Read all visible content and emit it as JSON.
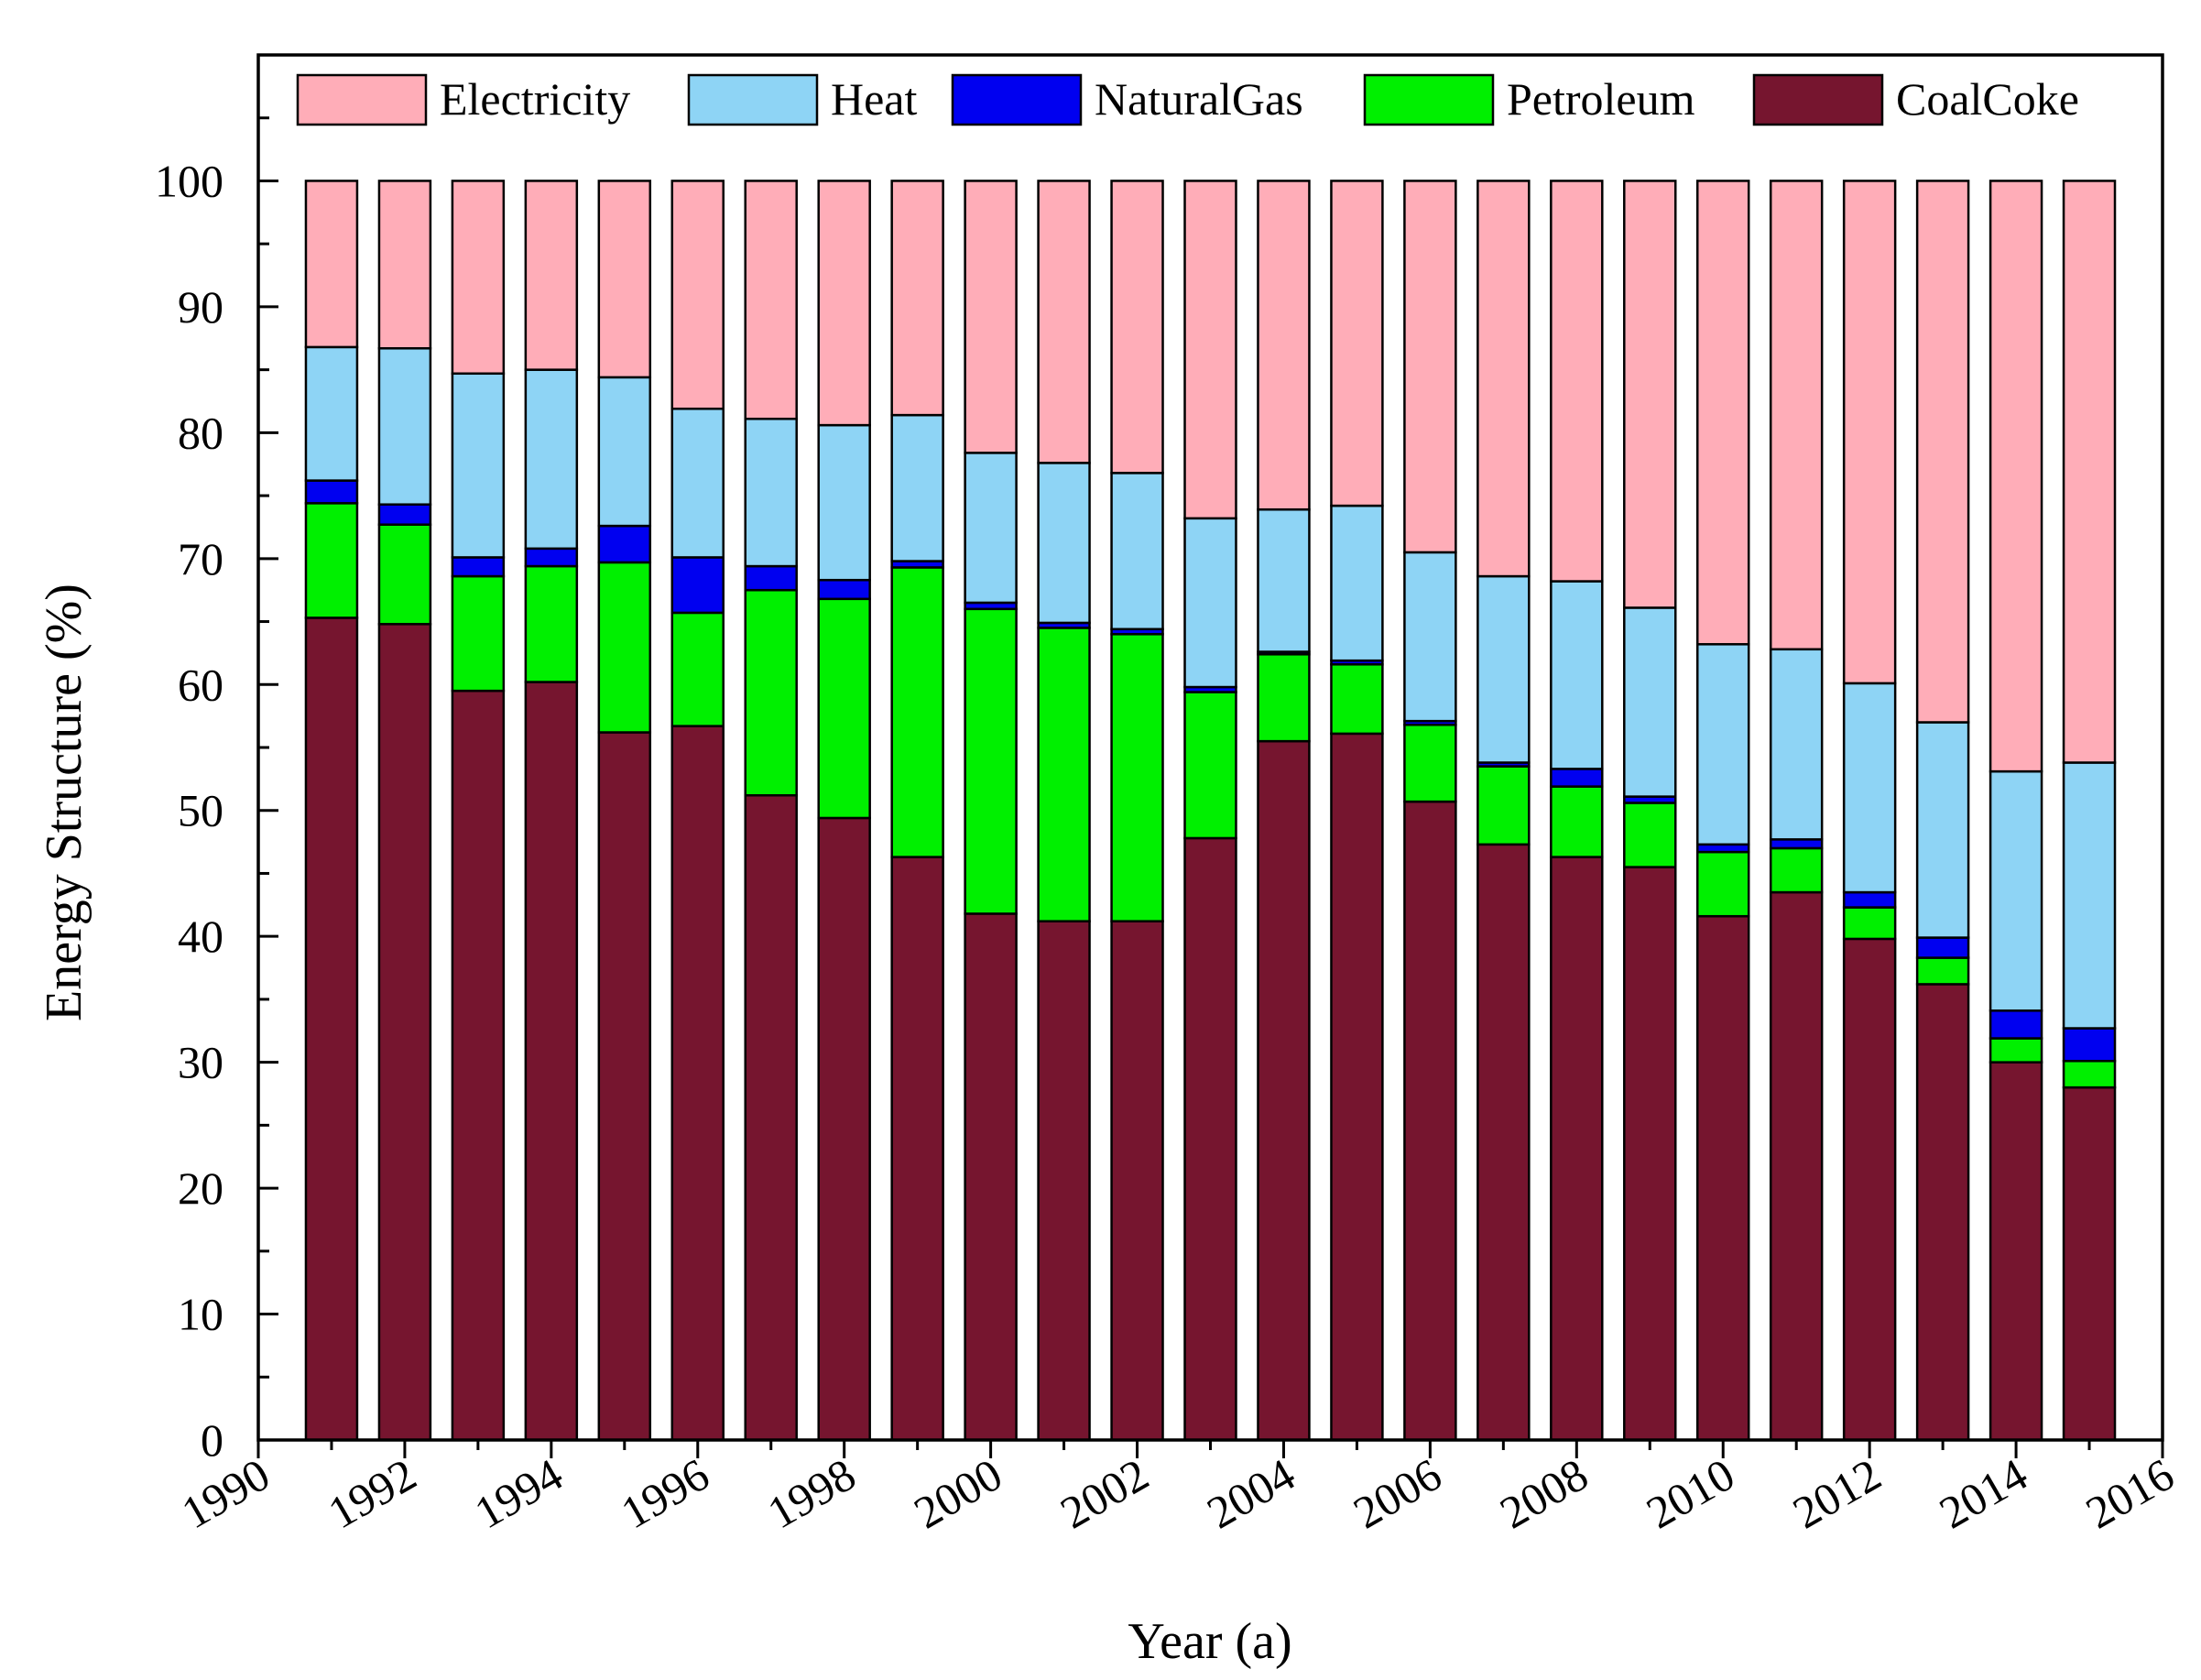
{
  "chart_data": {
    "type": "bar",
    "stacked": true,
    "title": "",
    "xlabel": "Year (a)",
    "ylabel": "Energy Structure (%)",
    "xlim": [
      1990,
      2016
    ],
    "ylim": [
      0,
      110
    ],
    "x_ticks": [
      "1990",
      "1992",
      "1994",
      "1996",
      "1998",
      "2000",
      "2002",
      "2004",
      "2006",
      "2008",
      "2010",
      "2012",
      "2014",
      "2016"
    ],
    "y_ticks": [
      "0",
      "10",
      "20",
      "30",
      "40",
      "50",
      "60",
      "70",
      "80",
      "90",
      "100"
    ],
    "legend_position": "top",
    "years": [
      1991,
      1992,
      1993,
      1994,
      1995,
      1996,
      1997,
      1998,
      1999,
      2000,
      2001,
      2002,
      2003,
      2004,
      2005,
      2006,
      2007,
      2008,
      2009,
      2010,
      2011,
      2012,
      2013,
      2014,
      2015
    ],
    "series": [
      {
        "name": "CoalCoke",
        "color": "#76152F",
        "values": [
          65.3,
          64.8,
          59.5,
          60.2,
          56.2,
          56.7,
          51.2,
          49.4,
          46.3,
          41.8,
          41.2,
          41.2,
          47.8,
          55.5,
          56.1,
          50.7,
          47.3,
          46.3,
          45.5,
          41.6,
          43.5,
          39.8,
          36.2,
          30.0,
          28.0
        ]
      },
      {
        "name": "Petroleum",
        "color": "#00F000",
        "values": [
          9.1,
          7.9,
          9.1,
          9.2,
          13.5,
          9.0,
          16.3,
          17.4,
          23.0,
          24.2,
          23.3,
          22.8,
          11.6,
          6.9,
          5.5,
          6.1,
          6.2,
          5.6,
          5.1,
          5.1,
          3.5,
          2.5,
          2.1,
          1.9,
          2.1
        ]
      },
      {
        "name": "NaturalGas",
        "color": "#0000F0",
        "values": [
          1.8,
          1.6,
          1.5,
          1.4,
          2.9,
          4.4,
          1.9,
          1.5,
          0.5,
          0.5,
          0.4,
          0.4,
          0.4,
          0.2,
          0.3,
          0.3,
          0.3,
          1.4,
          0.5,
          0.6,
          0.7,
          1.2,
          1.6,
          2.2,
          2.6
        ]
      },
      {
        "name": "Heat",
        "color": "#8ED4F5",
        "values": [
          10.6,
          12.4,
          14.6,
          14.2,
          11.8,
          11.8,
          11.7,
          12.3,
          11.6,
          11.9,
          12.7,
          12.4,
          13.4,
          11.3,
          12.3,
          13.4,
          14.8,
          14.9,
          15.0,
          15.9,
          15.1,
          16.6,
          17.1,
          19.0,
          21.1
        ]
      },
      {
        "name": "Electricity",
        "color": "#FFADB8",
        "values": [
          13.2,
          13.3,
          15.3,
          15.0,
          15.6,
          18.1,
          18.9,
          19.4,
          18.6,
          21.6,
          22.4,
          23.2,
          26.8,
          26.1,
          25.8,
          29.5,
          31.4,
          31.8,
          33.9,
          36.8,
          37.2,
          39.9,
          43.0,
          46.9,
          46.2
        ]
      }
    ]
  }
}
